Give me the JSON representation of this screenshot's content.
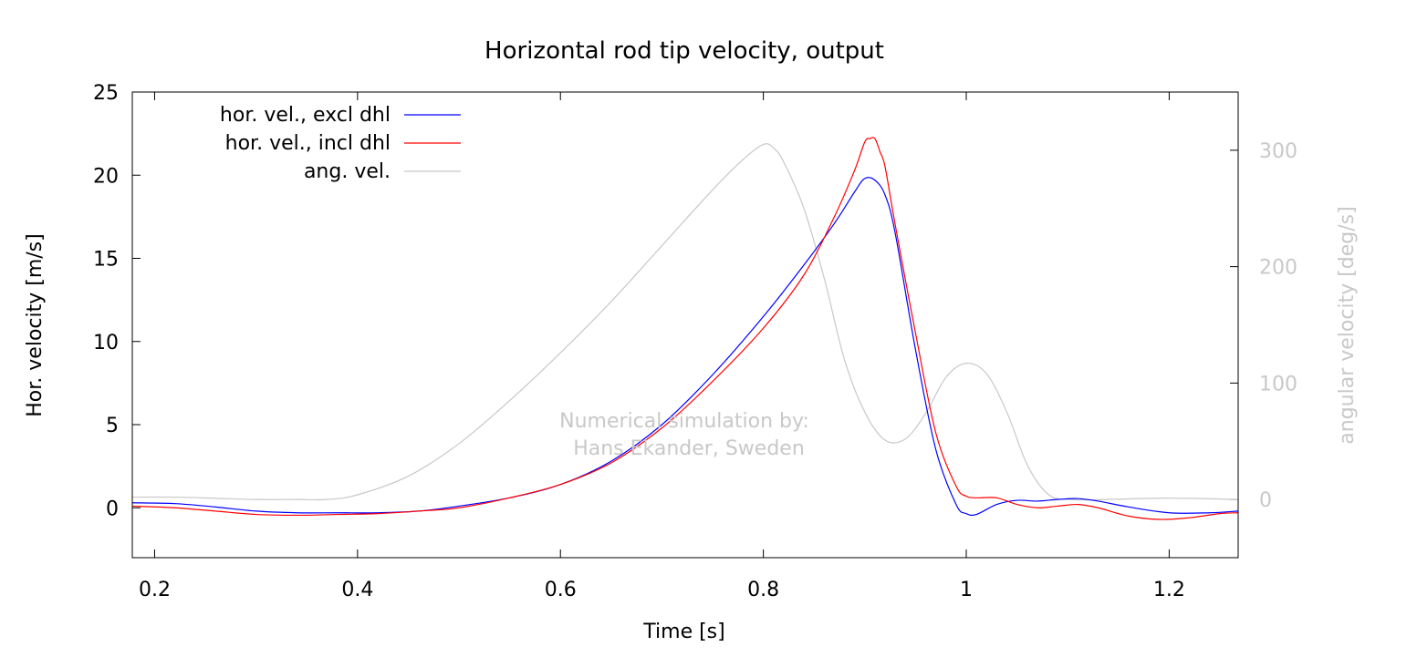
{
  "chart_data": {
    "type": "line",
    "title": "Horizontal rod tip velocity, output",
    "xlabel": "Time [s]",
    "ylabel": "Hor. velocity [m/s]",
    "y2label": "angular velocity [deg/s]",
    "xlim": [
      0.178,
      1.268
    ],
    "ylim": [
      -3,
      25
    ],
    "y2lim": [
      -50,
      350
    ],
    "x_ticks": [
      0.2,
      0.4,
      0.6,
      0.8,
      1,
      1.2
    ],
    "y_ticks": [
      0,
      5,
      10,
      15,
      20,
      25
    ],
    "y2_ticks": [
      0,
      100,
      200,
      300
    ],
    "legend_position": "top-left",
    "annotation": [
      "Numerical simulation by:",
      "Hans Ekander, Sweden"
    ],
    "series": [
      {
        "name": "hor. vel., excl dhl",
        "color": "#0000ff",
        "axis": "y",
        "x": [
          0.178,
          0.22,
          0.26,
          0.3,
          0.34,
          0.38,
          0.42,
          0.46,
          0.5,
          0.55,
          0.6,
          0.65,
          0.7,
          0.75,
          0.8,
          0.84,
          0.87,
          0.89,
          0.9,
          0.91,
          0.92,
          0.93,
          0.95,
          0.97,
          0.99,
          1.0,
          1.01,
          1.03,
          1.05,
          1.07,
          1.09,
          1.11,
          1.13,
          1.16,
          1.2,
          1.24,
          1.268
        ],
        "y": [
          0.3,
          0.25,
          0.05,
          -0.2,
          -0.3,
          -0.3,
          -0.3,
          -0.2,
          0.1,
          0.6,
          1.4,
          2.8,
          5.0,
          8.0,
          11.5,
          14.6,
          17.1,
          19.0,
          19.8,
          19.7,
          18.8,
          16.5,
          9.5,
          3.5,
          0.2,
          -0.35,
          -0.4,
          0.2,
          0.45,
          0.4,
          0.5,
          0.55,
          0.4,
          0.05,
          -0.3,
          -0.3,
          -0.2
        ]
      },
      {
        "name": "hor. vel., incl dhl",
        "color": "#ff0000",
        "axis": "y",
        "x": [
          0.178,
          0.22,
          0.26,
          0.3,
          0.34,
          0.38,
          0.42,
          0.46,
          0.5,
          0.55,
          0.6,
          0.65,
          0.7,
          0.75,
          0.8,
          0.84,
          0.87,
          0.89,
          0.9,
          0.905,
          0.91,
          0.915,
          0.92,
          0.93,
          0.95,
          0.97,
          0.99,
          1.0,
          1.01,
          1.03,
          1.05,
          1.07,
          1.09,
          1.11,
          1.13,
          1.16,
          1.19,
          1.22,
          1.25,
          1.268
        ],
        "y": [
          0.1,
          0.0,
          -0.2,
          -0.4,
          -0.45,
          -0.4,
          -0.35,
          -0.2,
          0.0,
          0.6,
          1.4,
          2.7,
          4.8,
          7.6,
          10.8,
          14.0,
          17.5,
          20.3,
          22.0,
          22.2,
          22.2,
          21.4,
          20.5,
          17.0,
          10.5,
          4.5,
          1.3,
          0.7,
          0.6,
          0.6,
          0.2,
          0.0,
          0.1,
          0.2,
          0.0,
          -0.5,
          -0.7,
          -0.6,
          -0.35,
          -0.3
        ]
      },
      {
        "name": "ang. vel.",
        "color": "#c8c8c8",
        "axis": "y2",
        "x": [
          0.178,
          0.22,
          0.26,
          0.3,
          0.34,
          0.37,
          0.4,
          0.45,
          0.5,
          0.55,
          0.6,
          0.65,
          0.7,
          0.75,
          0.78,
          0.8,
          0.81,
          0.82,
          0.84,
          0.86,
          0.88,
          0.9,
          0.92,
          0.94,
          0.96,
          0.98,
          1.0,
          1.02,
          1.04,
          1.06,
          1.08,
          1.1,
          1.14,
          1.18,
          1.22,
          1.268
        ],
        "y": [
          2,
          2,
          1,
          0,
          0,
          0,
          4,
          20,
          48,
          85,
          126,
          170,
          218,
          266,
          292,
          305,
          302,
          290,
          250,
          190,
          120,
          75,
          51,
          52,
          74,
          105,
          117,
          108,
          75,
          30,
          5,
          0,
          0,
          1,
          1,
          0
        ]
      }
    ]
  }
}
